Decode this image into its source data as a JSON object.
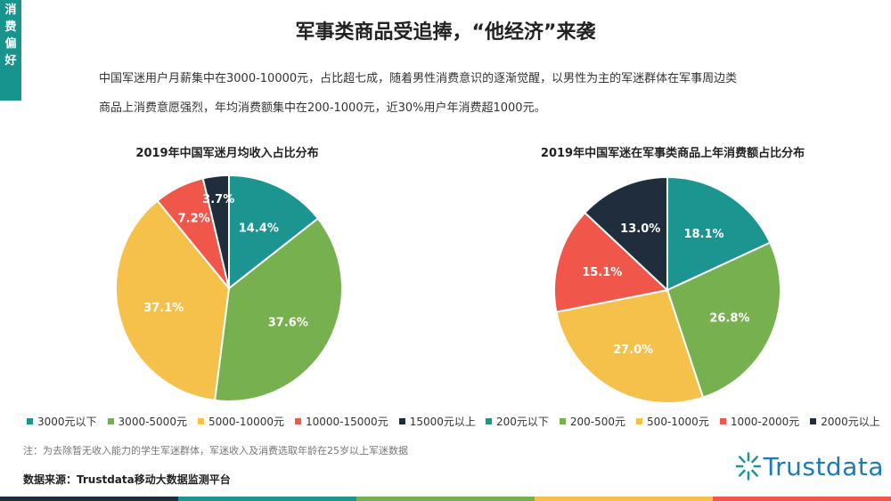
{
  "side_tab": {
    "label_chars": [
      "消",
      "费",
      "偏",
      "好"
    ]
  },
  "header": {
    "title": "军事类商品受追捧，“他经济”来袭"
  },
  "description": {
    "line1": "中国军迷用户月薪集中在3000-10000元，占比超七成，随着男性消费意识的逐渐觉醒，以男性为主的军迷群体在军事周边类",
    "line2": "商品上消费意愿强烈，年均消费额集中在200-1000元，近30%用户年消费超1000元。"
  },
  "colors": [
    "#1c9490",
    "#77b04e",
    "#f6c14a",
    "#f0574a",
    "#1f2d3d"
  ],
  "chart_data": [
    {
      "type": "pie",
      "title": "2019年中国军迷月均收入占比分布",
      "categories": [
        "3000元以下",
        "3000-5000元",
        "5000-10000元",
        "10000-15000元",
        "15000元以上"
      ],
      "values": [
        14.4,
        37.6,
        37.1,
        7.2,
        3.7
      ],
      "labels": [
        "14.4%",
        "37.6%",
        "37.1%",
        "7.2%",
        "3.7%"
      ],
      "legend_position": "bottom"
    },
    {
      "type": "pie",
      "title": "2019年中国军迷在军事类商品上年消费额占比分布",
      "categories": [
        "200元以下",
        "200-500元",
        "500-1000元",
        "1000-2000元",
        "2000元以上"
      ],
      "values": [
        18.1,
        26.8,
        27.0,
        15.1,
        13.0
      ],
      "labels": [
        "18.1%",
        "26.8%",
        "27.0%",
        "15.1%",
        "13.0%"
      ],
      "legend_position": "bottom"
    }
  ],
  "note": "注：为去除暂无收入能力的学生军迷群体，军迷收入及消费选取年龄在25岁以上军迷数据",
  "source": "数据来源：Trustdata移动大数据监测平台",
  "logo": {
    "text": "Trustdata"
  },
  "bottom_bar_colors": [
    "#1f2d3d",
    "#1c9490",
    "#77b04e",
    "#f6c14a",
    "#f0574a"
  ]
}
